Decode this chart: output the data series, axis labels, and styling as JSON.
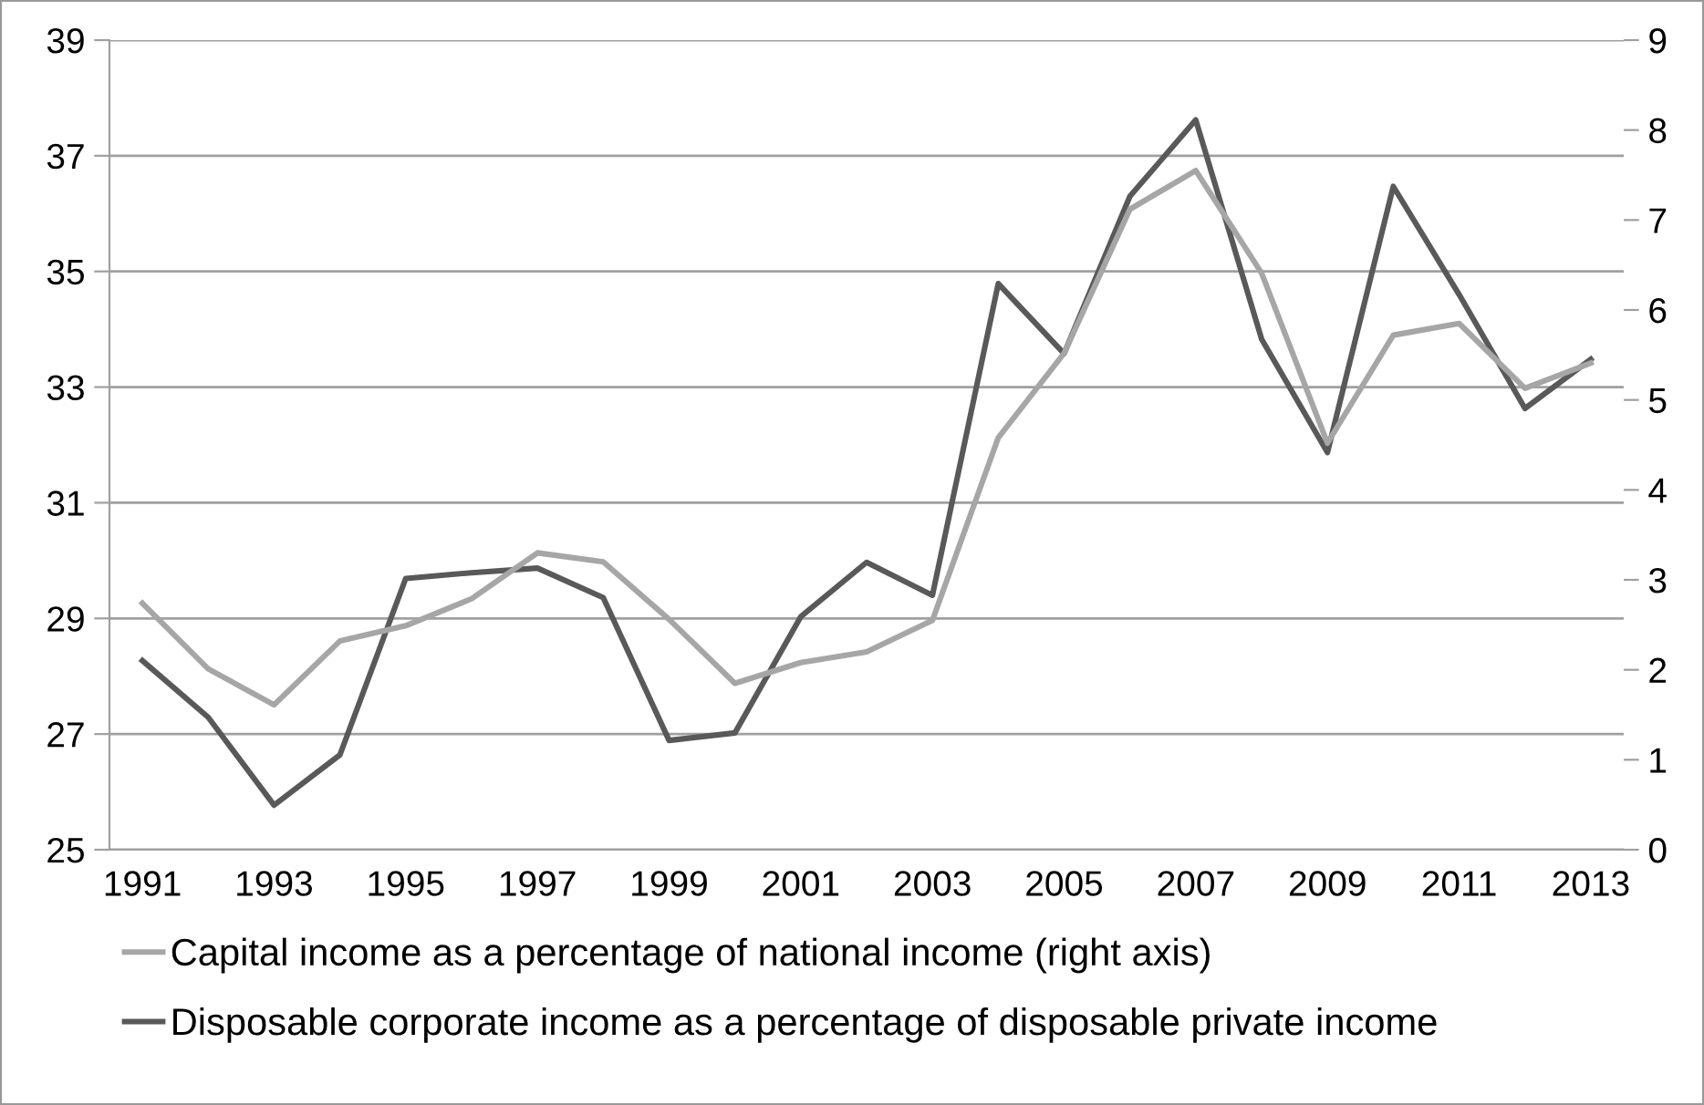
{
  "chart_data": {
    "type": "line",
    "categories": [
      "1991",
      null,
      "1993",
      null,
      "1995",
      null,
      "1997",
      null,
      "1999",
      null,
      "2001",
      null,
      "2003",
      null,
      "2005",
      null,
      "2007",
      null,
      "2009",
      null,
      "2011",
      null,
      "2013"
    ],
    "series": [
      {
        "name": "Capital income as a percentage of national income (right axis)",
        "color": "#a6a6a6",
        "axis": "y2",
        "values": [
          2.74,
          2.01,
          1.61,
          2.32,
          2.49,
          2.79,
          3.3,
          3.2,
          2.56,
          1.85,
          2.08,
          2.2,
          2.55,
          4.58,
          5.52,
          7.12,
          7.55,
          6.41,
          4.52,
          5.72,
          5.85,
          5.13,
          5.41
        ]
      },
      {
        "name": "Disposable corporate income as a percentage of disposable private income",
        "color": "#595959",
        "values": [
          28.27,
          27.29,
          25.77,
          26.64,
          29.69,
          29.79,
          29.87,
          29.36,
          26.89,
          27.02,
          29.03,
          29.97,
          29.4,
          34.79,
          33.58,
          36.3,
          37.62,
          33.83,
          31.87,
          36.47,
          34.6,
          32.63,
          33.48
        ]
      }
    ],
    "ylim": [
      25,
      39
    ],
    "yticks": [
      25,
      27,
      29,
      31,
      33,
      35,
      37,
      39
    ],
    "y2lim": [
      0,
      9
    ],
    "y2ticks": [
      0,
      1,
      2,
      3,
      4,
      5,
      6,
      7,
      8,
      9
    ],
    "grid": "y",
    "legend": "bottom",
    "marker": "none",
    "line_style": "solid"
  }
}
